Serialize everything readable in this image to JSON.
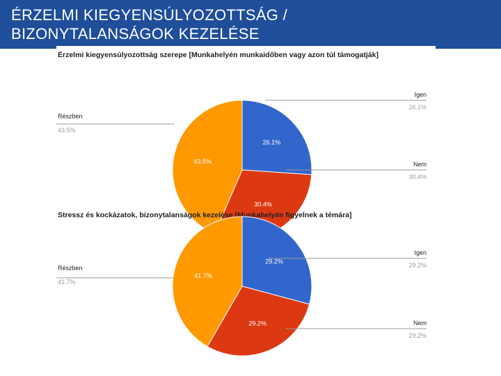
{
  "slide": {
    "title_line1": "ÉRZELMI KIEGYENSÚLYOZOTTSÁG /",
    "title_line2": "BIZONYTALANSÁGOK KEZELÉSE"
  },
  "colors": {
    "header": "#1f4e9a",
    "igen": "#3366cc",
    "nem": "#dc3912",
    "reszben": "#ff9900"
  },
  "chart_data": [
    {
      "type": "pie",
      "title": "Érzelmi kiegyensúlyozottság szerepe [Munkahelyén munkaidőben vagy azon túl támogatják]",
      "slices": [
        {
          "label": "Igen",
          "value": 26.1,
          "display": "26.1%"
        },
        {
          "label": "Nem",
          "value": 30.4,
          "display": "30.4%"
        },
        {
          "label": "Részben",
          "value": 43.5,
          "display": "43.5%"
        }
      ]
    },
    {
      "type": "pie",
      "title": "Stressz és kockázatok, bizonytalanságok kezelése [Munkahelyén figyelnek a témára]",
      "slices": [
        {
          "label": "Igen",
          "value": 29.2,
          "display": "29.2%"
        },
        {
          "label": "Nem",
          "value": 29.2,
          "display": "29.2%"
        },
        {
          "label": "Részben",
          "value": 41.7,
          "display": "41.7%"
        }
      ]
    }
  ]
}
